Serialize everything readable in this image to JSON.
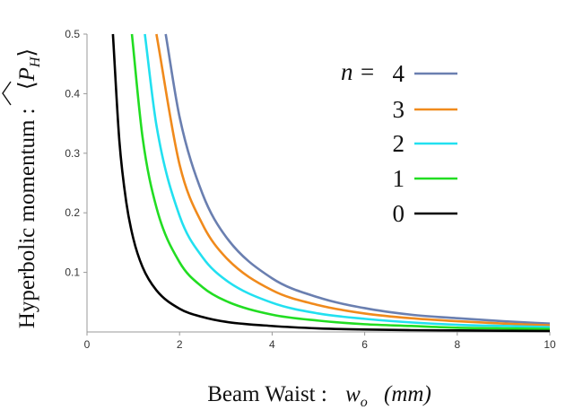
{
  "chart_data": {
    "type": "line",
    "xlabel": {
      "text": "Beam Waist :",
      "symbol": "w",
      "subscript": "o",
      "unit": "(mm)"
    },
    "ylabel": {
      "text": "Hyperbolic momentum :",
      "symbol": "P",
      "subscript": "H"
    },
    "xlim": [
      0,
      10
    ],
    "ylim": [
      0,
      0.5
    ],
    "x_ticks": [
      0,
      2,
      4,
      6,
      8,
      10
    ],
    "y_ticks": [
      0.1,
      0.2,
      0.3,
      0.4,
      0.5
    ],
    "grid": false,
    "legend_position": "top-right",
    "legend_prefix": "n =",
    "series": [
      {
        "name": "4",
        "color": "#6a7fb0",
        "x": [
          1.7,
          2.0,
          2.5,
          3.0,
          4.0,
          5.0,
          6.0,
          7.0,
          8.0,
          9.0,
          10.0
        ],
        "y": [
          0.5,
          0.361,
          0.231,
          0.16,
          0.09,
          0.058,
          0.04,
          0.029,
          0.023,
          0.018,
          0.014
        ]
      },
      {
        "name": "3",
        "color": "#f08a1c",
        "x": [
          1.5,
          2.0,
          2.5,
          3.0,
          4.0,
          5.0,
          6.0,
          7.0,
          8.0,
          9.0,
          10.0
        ],
        "y": [
          0.5,
          0.281,
          0.18,
          0.125,
          0.07,
          0.045,
          0.031,
          0.023,
          0.018,
          0.014,
          0.011
        ]
      },
      {
        "name": "2",
        "color": "#22e0f0",
        "x": [
          1.25,
          1.5,
          2.0,
          2.5,
          3.0,
          4.0,
          5.0,
          6.0,
          7.0,
          8.0,
          9.0,
          10.0
        ],
        "y": [
          0.5,
          0.347,
          0.195,
          0.125,
          0.087,
          0.049,
          0.031,
          0.022,
          0.016,
          0.012,
          0.01,
          0.008
        ]
      },
      {
        "name": "1",
        "color": "#22dd22",
        "x": [
          0.97,
          1.2,
          1.5,
          2.0,
          2.5,
          3.0,
          4.0,
          5.0,
          6.0,
          7.0,
          8.0,
          9.0,
          10.0
        ],
        "y": [
          0.5,
          0.327,
          0.209,
          0.117,
          0.075,
          0.052,
          0.029,
          0.019,
          0.013,
          0.01,
          0.007,
          0.006,
          0.005
        ]
      },
      {
        "name": "0",
        "color": "#000000",
        "x": [
          0.56,
          0.7,
          0.85,
          1.0,
          1.2,
          1.5,
          2.0,
          2.5,
          3.0,
          4.0,
          5.0,
          6.0,
          7.0,
          8.0,
          9.0,
          10.0
        ],
        "y": [
          0.5,
          0.32,
          0.217,
          0.157,
          0.109,
          0.07,
          0.039,
          0.025,
          0.017,
          0.01,
          0.006,
          0.004,
          0.003,
          0.0025,
          0.002,
          0.0016
        ]
      }
    ]
  }
}
